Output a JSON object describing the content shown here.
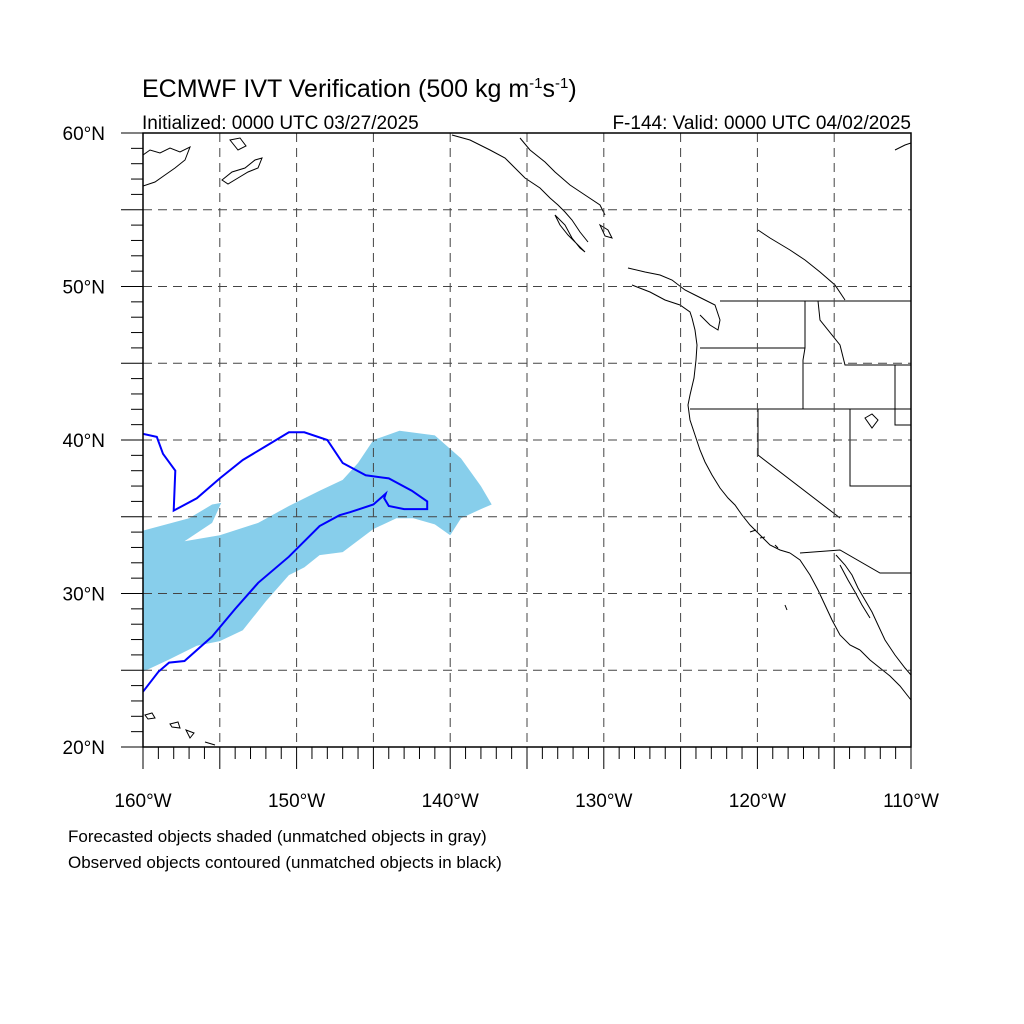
{
  "title": {
    "main_prefix": "ECMWF IVT Verification (500 kg m",
    "sup1": "-1",
    "mid": "s",
    "sup2": "-1",
    "suffix": ")",
    "initialized": "Initialized: 0000 UTC 03/27/2025",
    "valid": "F-144: Valid: 0000 UTC 04/02/2025"
  },
  "map": {
    "projection": "cylindrical-equidistant",
    "lon_range": [
      -160,
      -110
    ],
    "lat_range": [
      20,
      60
    ],
    "gridlines": "dashed",
    "gridline_lons": [
      -155,
      -150,
      -145,
      -140,
      -135,
      -130,
      -125,
      -120,
      -115
    ],
    "gridline_lats": [
      25,
      30,
      35,
      40,
      45,
      50,
      55
    ],
    "lat_labels": [
      {
        "lat": 60,
        "text": "60°N"
      },
      {
        "lat": 50,
        "text": "50°N"
      },
      {
        "lat": 40,
        "text": "40°N"
      },
      {
        "lat": 30,
        "text": "30°N"
      },
      {
        "lat": 20,
        "text": "20°N"
      }
    ],
    "lon_labels": [
      {
        "lon": -160,
        "text": "160°W"
      },
      {
        "lon": -150,
        "text": "150°W"
      },
      {
        "lon": -140,
        "text": "140°W"
      },
      {
        "lon": -130,
        "text": "130°W"
      },
      {
        "lon": -120,
        "text": "120°W"
      },
      {
        "lon": -110,
        "text": "110°W"
      }
    ],
    "colors": {
      "forecast_fill": "#87ceeb",
      "observed_contour": "#0000ff",
      "coastline": "#000000",
      "grid": "#000000"
    },
    "forecast_object": [
      [
        -160,
        34.1
      ],
      [
        -157,
        34.9
      ],
      [
        -155.5,
        35.8
      ],
      [
        -154.9,
        35.9
      ],
      [
        -155.5,
        34.6
      ],
      [
        -157.3,
        33.4
      ],
      [
        -155,
        33.8
      ],
      [
        -152.5,
        34.6
      ],
      [
        -150.5,
        35.7
      ],
      [
        -148.5,
        36.7
      ],
      [
        -147,
        37.4
      ],
      [
        -146,
        38.5
      ],
      [
        -145,
        40
      ],
      [
        -143.3,
        40.6
      ],
      [
        -141,
        40.3
      ],
      [
        -139.3,
        38.8
      ],
      [
        -138,
        37
      ],
      [
        -137.3,
        35.8
      ],
      [
        -138,
        35.5
      ],
      [
        -139.3,
        34.9
      ],
      [
        -140,
        33.8
      ],
      [
        -141,
        34.5
      ],
      [
        -142.4,
        34.9
      ],
      [
        -143.5,
        34.9
      ],
      [
        -145,
        34.2
      ],
      [
        -147,
        32.7
      ],
      [
        -148.5,
        32.5
      ],
      [
        -149.5,
        31.7
      ],
      [
        -150.5,
        31.2
      ],
      [
        -152,
        29.5
      ],
      [
        -153.5,
        27.6
      ],
      [
        -155,
        26.9
      ],
      [
        -156.5,
        26.6
      ],
      [
        -158.3,
        25.7
      ],
      [
        -160,
        24.9
      ]
    ],
    "observed_object": [
      [
        -160,
        40.4
      ],
      [
        -159.1,
        40.2
      ],
      [
        -158.7,
        39.1
      ],
      [
        -157.9,
        38
      ],
      [
        -158,
        35.4
      ],
      [
        -156.5,
        36.2
      ],
      [
        -155,
        37.5
      ],
      [
        -153.5,
        38.7
      ],
      [
        -152,
        39.6
      ],
      [
        -150.5,
        40.5
      ],
      [
        -149.5,
        40.5
      ],
      [
        -148,
        40
      ],
      [
        -147,
        38.5
      ],
      [
        -145.5,
        37.7
      ],
      [
        -144,
        37.5
      ],
      [
        -142.5,
        36.7
      ],
      [
        -141.5,
        36
      ],
      [
        -141.5,
        35.5
      ],
      [
        -143,
        35.5
      ],
      [
        -144,
        35.7
      ],
      [
        -144.3,
        36.2
      ],
      [
        -144.2,
        36.5
      ],
      [
        -145,
        35.8
      ],
      [
        -146.5,
        35.3
      ],
      [
        -147.2,
        35.1
      ],
      [
        -148.5,
        34.4
      ],
      [
        -150.5,
        32.4
      ],
      [
        -152.5,
        30.7
      ],
      [
        -154,
        29
      ],
      [
        -155.5,
        27.2
      ],
      [
        -157.3,
        25.6
      ],
      [
        -158.3,
        25.5
      ],
      [
        -159,
        24.9
      ],
      [
        -160,
        23.6
      ]
    ]
  },
  "footnotes": {
    "line1": "Forecasted objects shaded (unmatched objects in gray)",
    "line2": "Observed objects contoured (unmatched objects in black)"
  }
}
